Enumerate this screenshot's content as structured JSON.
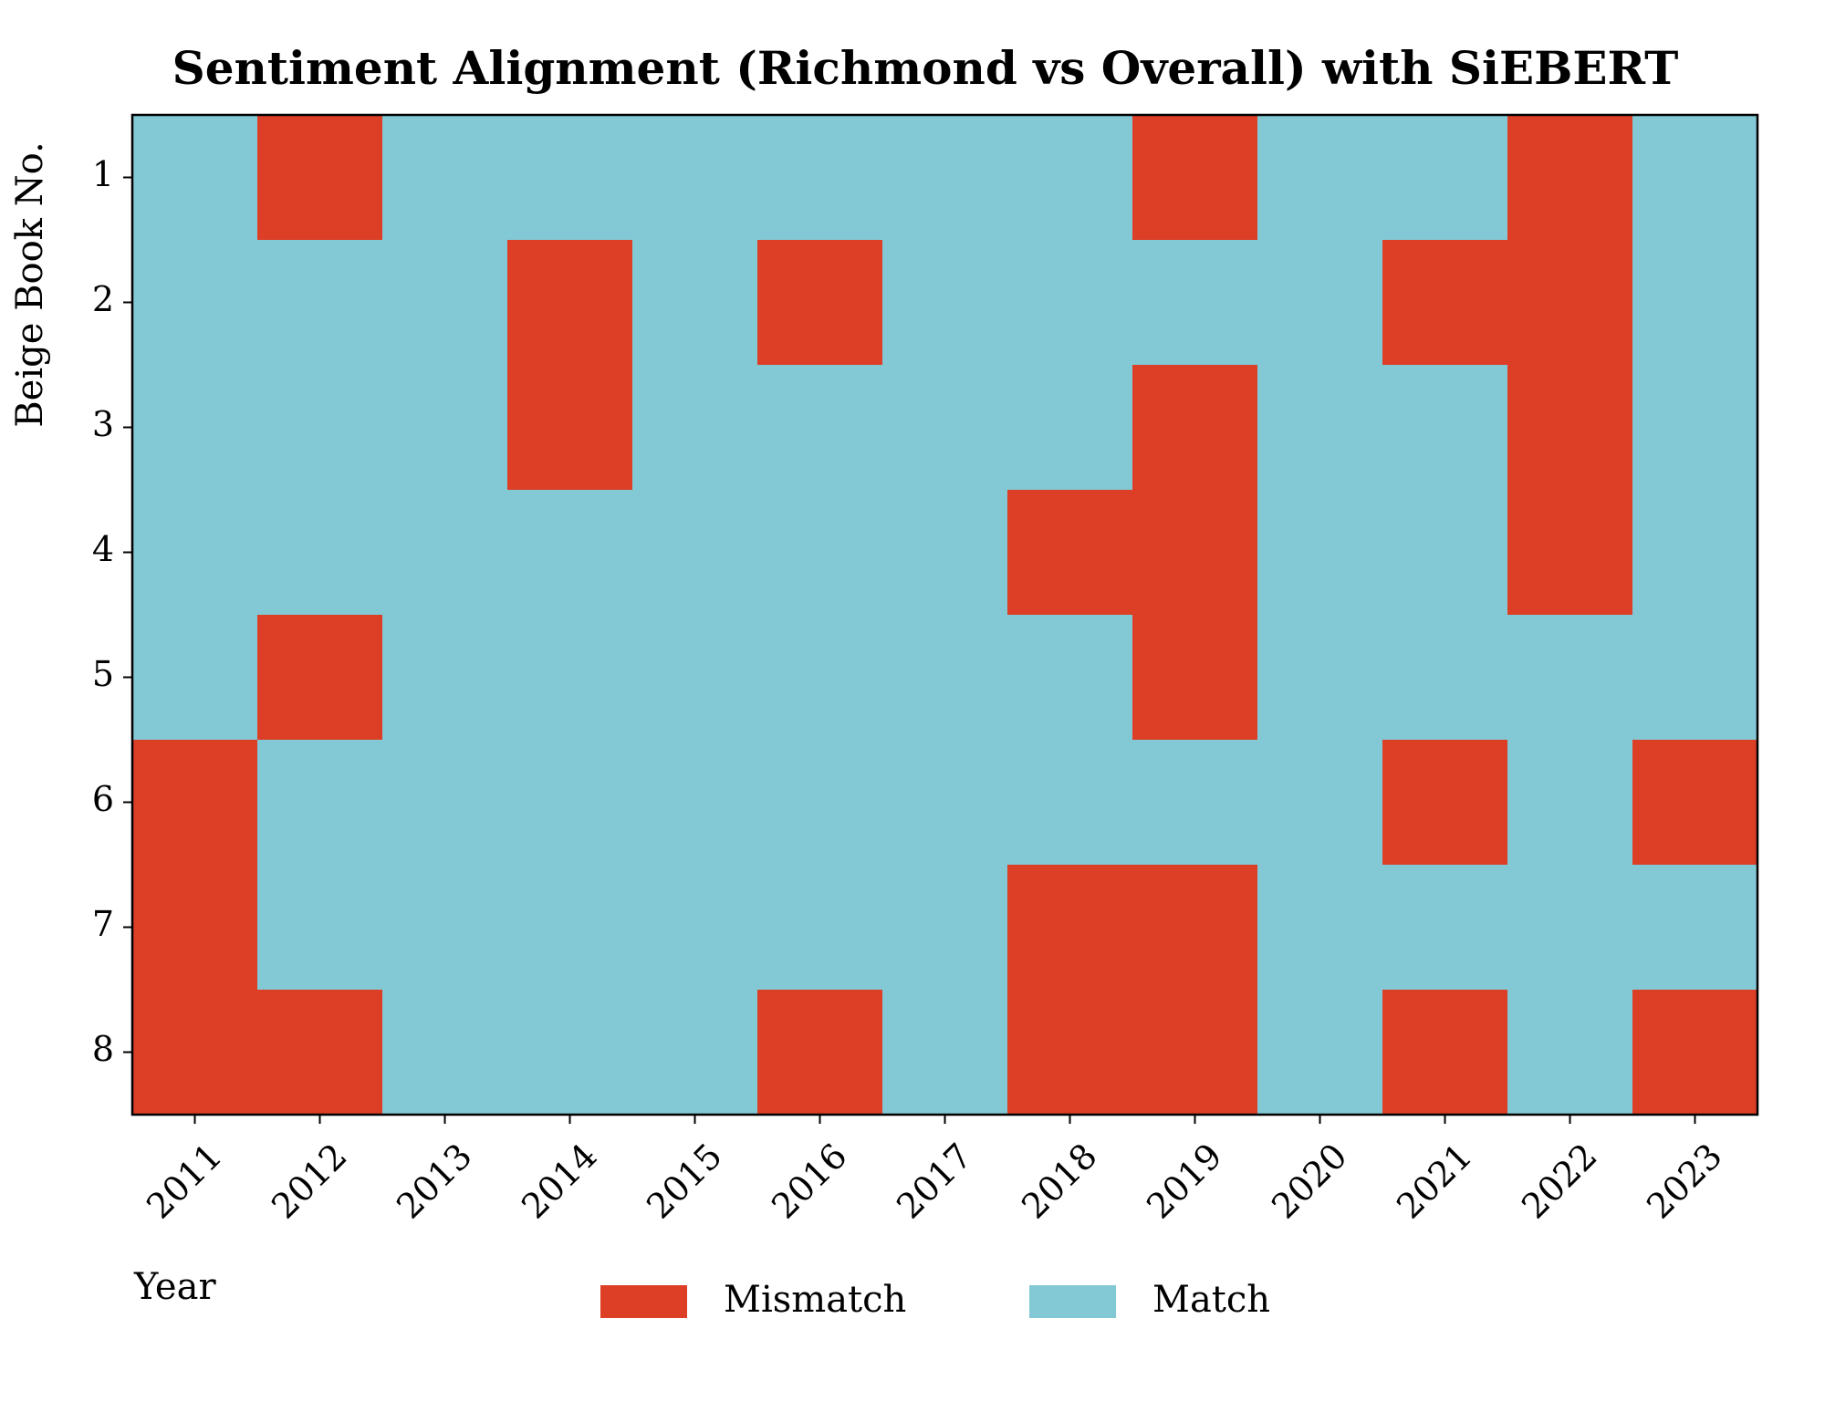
{
  "chart_data": {
    "type": "heatmap",
    "title": "Sentiment Alignment (Richmond vs Overall) with SiEBERT",
    "x_label": "Year",
    "y_label": "Beige Book No.",
    "categories": [
      2011,
      2012,
      2013,
      2014,
      2015,
      2016,
      2017,
      2018,
      2019,
      2020,
      2021,
      2022,
      2023
    ],
    "rows": [
      1,
      2,
      3,
      4,
      5,
      6,
      7,
      8
    ],
    "values": [
      [
        0,
        1,
        0,
        0,
        0,
        0,
        0,
        0,
        1,
        0,
        0,
        1,
        0
      ],
      [
        0,
        0,
        0,
        1,
        0,
        1,
        0,
        0,
        0,
        0,
        1,
        1,
        0
      ],
      [
        0,
        0,
        0,
        1,
        0,
        0,
        0,
        0,
        1,
        0,
        0,
        1,
        0
      ],
      [
        0,
        0,
        0,
        0,
        0,
        0,
        0,
        1,
        1,
        0,
        0,
        1,
        0
      ],
      [
        0,
        1,
        0,
        0,
        0,
        0,
        0,
        0,
        1,
        0,
        0,
        0,
        0
      ],
      [
        1,
        0,
        0,
        0,
        0,
        0,
        0,
        0,
        0,
        0,
        1,
        0,
        1
      ],
      [
        1,
        0,
        0,
        0,
        0,
        0,
        0,
        1,
        1,
        0,
        0,
        0,
        0
      ],
      [
        1,
        1,
        0,
        0,
        0,
        1,
        0,
        1,
        1,
        0,
        1,
        0,
        1
      ]
    ],
    "legend": [
      {
        "label": "Mismatch",
        "value": 1,
        "color": "#dc3e26"
      },
      {
        "label": "Match",
        "value": 0,
        "color": "#82c9d5"
      }
    ]
  }
}
